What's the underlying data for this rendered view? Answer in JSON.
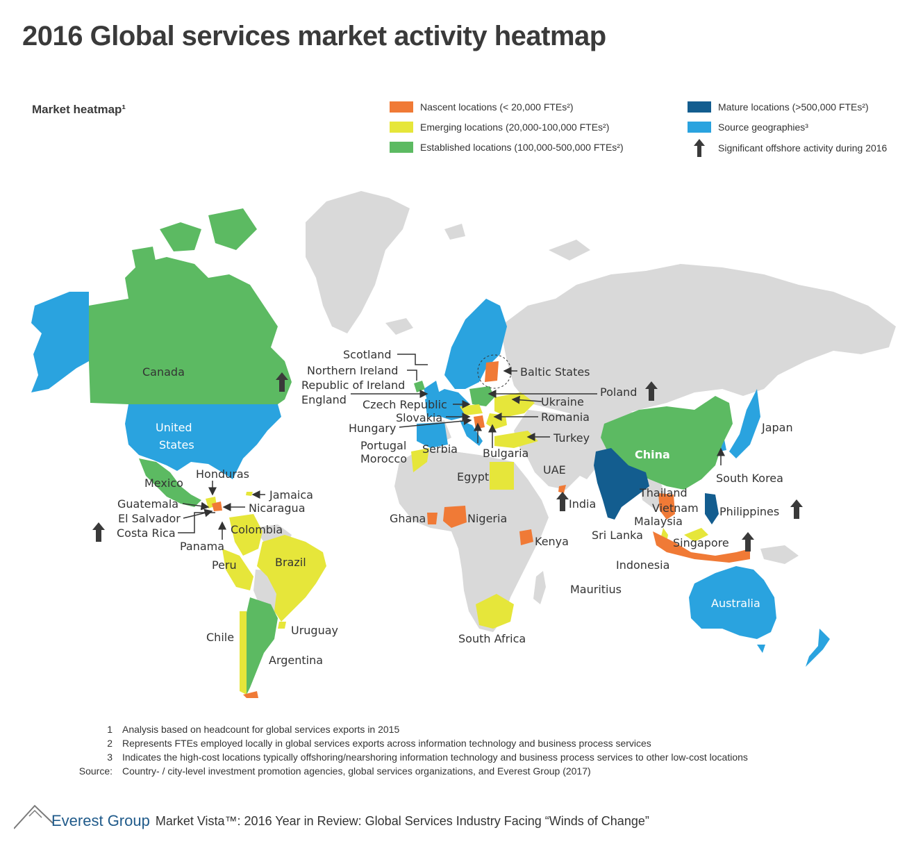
{
  "title": "2016 Global services market activity heatmap",
  "subtitle": "Market heatmap¹",
  "colors": {
    "nascent": "#f07a36",
    "emerging": "#e6e63a",
    "established": "#5cba62",
    "mature": "#135d8f",
    "source": "#2aa3df",
    "other": "#d9d9d9",
    "arrow": "#3a3a3a"
  },
  "legend": [
    {
      "key": "nascent",
      "label": "Nascent locations (< 20,000 FTEs²)"
    },
    {
      "key": "emerging",
      "label": "Emerging locations (20,000-100,000 FTEs²)"
    },
    {
      "key": "established",
      "label": "Established locations (100,000-500,000 FTEs²)"
    },
    {
      "key": "mature",
      "label": "Mature locations (>500,000 FTEs²)"
    },
    {
      "key": "source",
      "label": "Source geographies³"
    },
    {
      "key": "arrow",
      "icon": "up-arrow-icon",
      "label": "Significant offshore activity during 2016"
    }
  ],
  "labels": {
    "canada": "Canada",
    "united": "United",
    "states": "States",
    "mexico": "Mexico",
    "honduras": "Honduras",
    "jamaica": "Jamaica",
    "guatemala": "Guatemala",
    "nicaragua": "Nicaragua",
    "el_salvador": "El Salvador",
    "costa_rica": "Costa Rica",
    "colombia": "Colombia",
    "panama": "Panama",
    "peru": "Peru",
    "brazil": "Brazil",
    "chile": "Chile",
    "uruguay": "Uruguay",
    "argentina": "Argentina",
    "scotland": "Scotland",
    "northern_ireland": "Northern Ireland",
    "republic_of_ireland": "Republic of Ireland",
    "england": "England",
    "baltic_states": "Baltic States",
    "poland": "Poland",
    "czech_republic": "Czech Republic",
    "ukraine": "Ukraine",
    "slovakia": "Slovakia",
    "romania": "Romania",
    "hungary": "Hungary",
    "turkey": "Turkey",
    "portugal": "Portugal",
    "serbia": "Serbia",
    "bulgaria": "Bulgaria",
    "morocco": "Morocco",
    "egypt": "Egypt",
    "uae": "UAE",
    "india": "India",
    "ghana": "Ghana",
    "nigeria": "Nigeria",
    "kenya": "Kenya",
    "sri_lanka": "Sri Lanka",
    "mauritius": "Mauritius",
    "south_africa": "South Africa",
    "china": "China",
    "japan": "Japan",
    "south_korea": "South Korea",
    "thailand": "Thailand",
    "vietnam": "Vietnam",
    "malaysia": "Malaysia",
    "philippines": "Philippines",
    "singapore": "Singapore",
    "indonesia": "Indonesia",
    "australia": "Australia"
  },
  "notes": [
    {
      "key": "1",
      "text": "Analysis based on headcount for global services exports in 2015"
    },
    {
      "key": "2",
      "text": "Represents FTEs employed locally in global services exports across information technology and business process services"
    },
    {
      "key": "3",
      "text": "Indicates the high-cost locations typically offshoring/nearshoring information technology and business process services to other low-cost locations"
    },
    {
      "key": "Source:",
      "text": "Country- / city-level investment promotion agencies, global services organizations, and Everest Group (2017)"
    }
  ],
  "footer": {
    "brand": "Everest Group",
    "report": "Market Vista™: 2016 Year in Review: Global Services Industry Facing “Winds of Change”"
  }
}
